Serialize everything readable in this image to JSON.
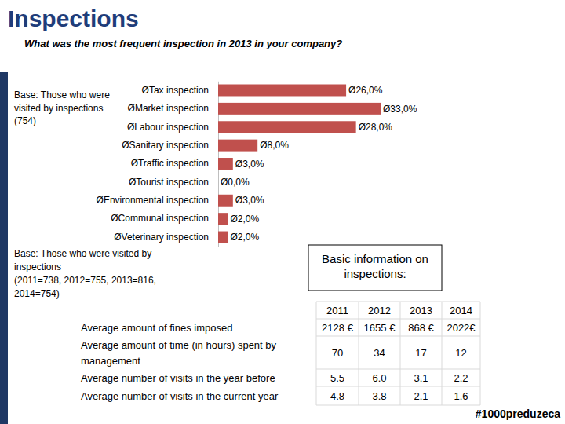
{
  "header": {
    "title": "Inspections"
  },
  "chart_data": {
    "type": "bar",
    "orientation": "horizontal",
    "title": "What was the most frequent inspection in 2013 in your company?",
    "subtitle": "Base: Those who were\nvisited by inspections\n(754)",
    "categories": [
      "ØTax inspection",
      "ØMarket inspection",
      "ØLabour inspection",
      "ØSanitary inspection",
      "ØTraffic inspection",
      "ØTourist inspection",
      "ØEnvironmental inspection",
      "ØCommunal inspection",
      "ØVeterinary inspection"
    ],
    "values": [
      26,
      33,
      28,
      8,
      3,
      0,
      3,
      2,
      2
    ],
    "value_labels": [
      "Ø26,0%",
      "Ø33,0%",
      "Ø28,0%",
      "Ø8,0%",
      "Ø3,0%",
      "Ø0,0%",
      "Ø3,0%",
      "Ø2,0%",
      "Ø2,0%"
    ],
    "color": "#c0504d",
    "data_labels": true,
    "tick_labels": "y"
  },
  "table": {
    "note": "Base: Those who were visited by\ninspections\n(2011=738, 2012=755, 2013=816,\n2014=754)",
    "caption": "Basic information on\ninspections:",
    "columns": [
      "2011",
      "2012",
      "2013",
      "2014"
    ],
    "rows": [
      [
        "Average amount of fines imposed",
        "2128 €",
        "1655 €",
        "868 €",
        "2022€"
      ],
      [
        "Average amount of time (in hours) spent by management",
        "70",
        "34",
        "17",
        "12"
      ],
      [
        "Average number of visits in the year before",
        "5.5",
        "6.0",
        "3.1",
        "2.2"
      ],
      [
        "Average number of visits in the current year",
        "4.8",
        "3.8",
        "2.1",
        "1.6"
      ]
    ]
  },
  "footer": "#1000preduzeca"
}
